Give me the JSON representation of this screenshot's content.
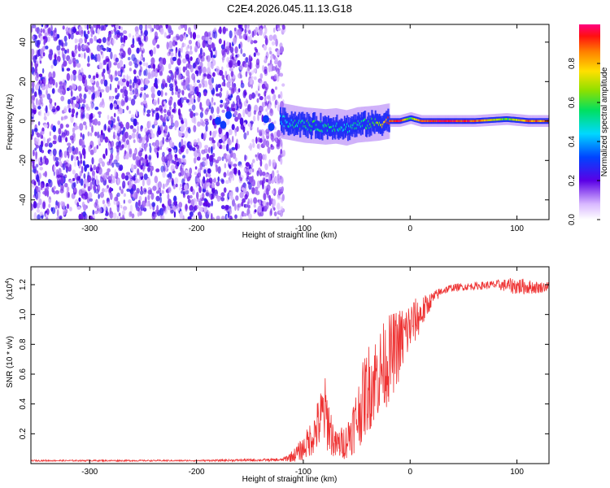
{
  "title": "C2E4.2026.045.11.13.G18",
  "chart_data": [
    {
      "type": "heatmap",
      "xlabel": "Height of straight line (km)",
      "ylabel": "Frequency (Hz)",
      "xlim": [
        -355,
        130
      ],
      "ylim": [
        -50,
        49
      ],
      "xticks": [
        -300,
        -200,
        -100,
        0,
        100
      ],
      "yticks": [
        -40,
        -20,
        0,
        20,
        40
      ],
      "noise_region_km": [
        -355,
        -118
      ],
      "signal_track": [
        {
          "x": -120,
          "y": 0.0,
          "a": 0.45
        },
        {
          "x": -110,
          "y": -1.0,
          "a": 0.5
        },
        {
          "x": -100,
          "y": -2.0,
          "a": 0.55
        },
        {
          "x": -90,
          "y": -2.5,
          "a": 0.55
        },
        {
          "x": -80,
          "y": -3.0,
          "a": 0.5
        },
        {
          "x": -70,
          "y": -2.5,
          "a": 0.5
        },
        {
          "x": -60,
          "y": -3.5,
          "a": 0.45
        },
        {
          "x": -50,
          "y": -2.0,
          "a": 0.5
        },
        {
          "x": -40,
          "y": -1.5,
          "a": 0.55
        },
        {
          "x": -30,
          "y": -1.0,
          "a": 0.65
        },
        {
          "x": -20,
          "y": 0.0,
          "a": 0.9
        },
        {
          "x": -10,
          "y": 0.0,
          "a": 0.95
        },
        {
          "x": 0,
          "y": 1.5,
          "a": 0.55
        },
        {
          "x": 10,
          "y": 0.0,
          "a": 0.9
        },
        {
          "x": 30,
          "y": 0.0,
          "a": 0.95
        },
        {
          "x": 60,
          "y": 0.0,
          "a": 0.9
        },
        {
          "x": 90,
          "y": 1.0,
          "a": 0.6
        },
        {
          "x": 110,
          "y": 0.0,
          "a": 0.85
        },
        {
          "x": 130,
          "y": 0.0,
          "a": 0.85
        }
      ],
      "colorbar": {
        "label": "Normalized spectral amplitude",
        "range": [
          0,
          1
        ],
        "ticks": [
          0.0,
          0.2,
          0.4,
          0.6,
          0.8
        ],
        "tick_labels": [
          "0.0",
          "0.2",
          "0.4",
          "0.6",
          "0.8"
        ]
      }
    },
    {
      "type": "line",
      "xlabel": "Height of straight line (km)",
      "ylabel": "SNR (10 * v/v)",
      "y_scale_label": "(x10",
      "y_scale_exp": "4",
      "y_scale_close": ")",
      "xlim": [
        -355,
        130
      ],
      "ylim": [
        0,
        1.32
      ],
      "xticks": [
        -300,
        -200,
        -100,
        0,
        100
      ],
      "yticks": [
        0.2,
        0.4,
        0.6,
        0.8,
        1.0,
        1.2
      ],
      "ytick_labels": [
        "0.2",
        "0.4",
        "0.6",
        "0.8",
        "1.0",
        "1.2"
      ],
      "color": "#ee3333",
      "series": [
        {
          "name": "SNR",
          "x": [
            -355,
            -200,
            -120,
            -110,
            -100,
            -90,
            -80,
            -70,
            -60,
            -50,
            -40,
            -30,
            -20,
            -10,
            0,
            10,
            20,
            30,
            40,
            60,
            80,
            100,
            120,
            130
          ],
          "y": [
            0.02,
            0.02,
            0.025,
            0.05,
            0.1,
            0.2,
            0.35,
            0.12,
            0.15,
            0.3,
            0.5,
            0.6,
            0.7,
            0.8,
            0.92,
            1.0,
            1.1,
            1.16,
            1.18,
            1.19,
            1.2,
            1.19,
            1.18,
            1.19
          ],
          "noise": [
            0.005,
            0.005,
            0.01,
            0.04,
            0.08,
            0.14,
            0.25,
            0.1,
            0.12,
            0.22,
            0.3,
            0.3,
            0.3,
            0.25,
            0.18,
            0.12,
            0.05,
            0.03,
            0.025,
            0.025,
            0.03,
            0.06,
            0.04,
            0.03
          ]
        }
      ]
    }
  ]
}
